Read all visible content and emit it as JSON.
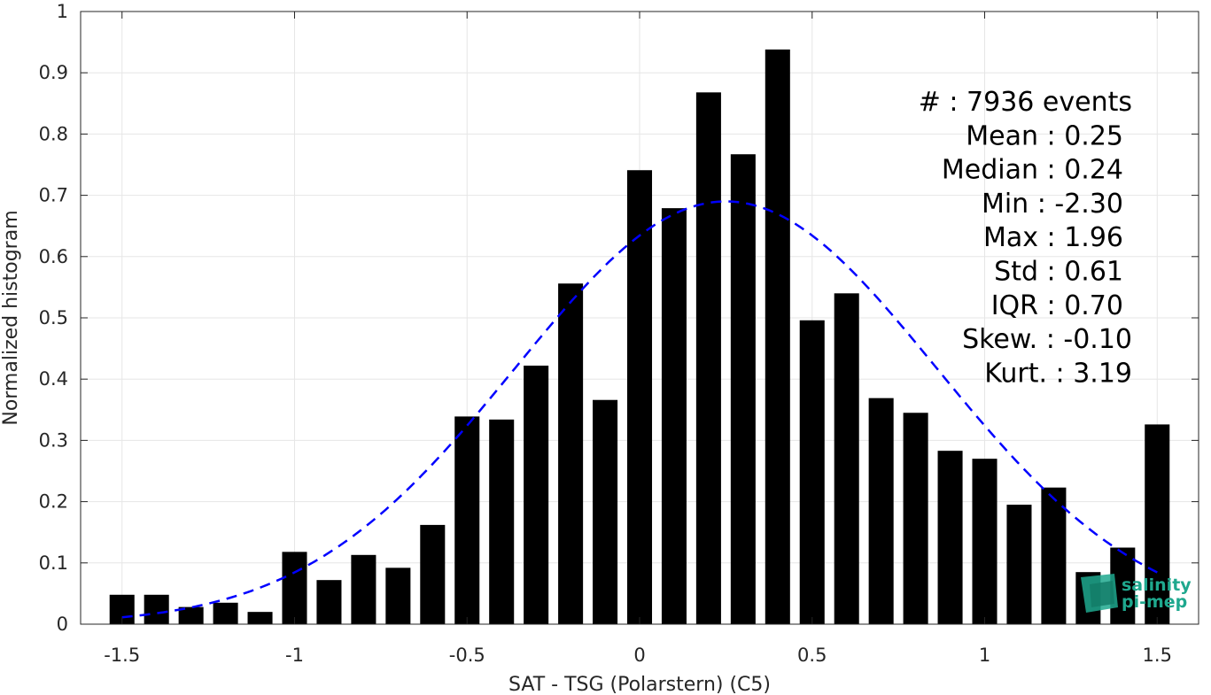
{
  "chart_data": {
    "type": "bar",
    "xlabel": "SAT - TSG (Polarstern) (C5)",
    "ylabel": "Normalized histogram",
    "xlim": [
      -1.62,
      1.62
    ],
    "ylim": [
      0,
      1
    ],
    "xticks": [
      -1.5,
      -1,
      -0.5,
      0,
      0.5,
      1,
      1.5
    ],
    "xtick_labels": [
      "-1.5",
      "-1",
      "-0.5",
      "0",
      "0.5",
      "1",
      "1.5"
    ],
    "yticks": [
      0,
      0.1,
      0.2,
      0.3,
      0.4,
      0.5,
      0.6,
      0.7,
      0.8,
      0.9,
      1
    ],
    "ytick_labels": [
      "0",
      "0.1",
      "0.2",
      "0.3",
      "0.4",
      "0.5",
      "0.6",
      "0.7",
      "0.8",
      "0.9",
      "1"
    ],
    "grid": true,
    "bar_color": "#000000",
    "bin_width": 0.1,
    "x": [
      -1.5,
      -1.4,
      -1.3,
      -1.2,
      -1.1,
      -1.0,
      -0.9,
      -0.8,
      -0.7,
      -0.6,
      -0.5,
      -0.4,
      -0.3,
      -0.2,
      -0.1,
      0.0,
      0.1,
      0.2,
      0.3,
      0.4,
      0.5,
      0.6,
      0.7,
      0.8,
      0.9,
      1.0,
      1.1,
      1.2,
      1.3,
      1.4,
      1.5
    ],
    "values": [
      0.048,
      0.048,
      0.028,
      0.035,
      0.02,
      0.118,
      0.072,
      0.113,
      0.092,
      0.162,
      0.339,
      0.334,
      0.422,
      0.556,
      0.366,
      0.741,
      0.679,
      0.868,
      0.767,
      0.938,
      0.496,
      0.54,
      0.369,
      0.345,
      0.283,
      0.27,
      0.195,
      0.223,
      0.085,
      0.125,
      0.326
    ],
    "fit": {
      "type": "gaussian",
      "color": "#0000ff",
      "style": "dashed",
      "mean": 0.25,
      "std": 0.61,
      "peak": 0.69
    },
    "stats_lines": [
      "#  : 7936 events",
      "Mean : 0.25",
      "Median : 0.24",
      "Min : -2.30",
      "Max : 1.96",
      "Std : 0.61",
      "IQR : 0.70",
      "Skew. : -0.10",
      "Kurt. : 3.19"
    ],
    "logo": {
      "line1": "salinity",
      "line2": "pi-mep",
      "color": "#1fa88e"
    }
  }
}
